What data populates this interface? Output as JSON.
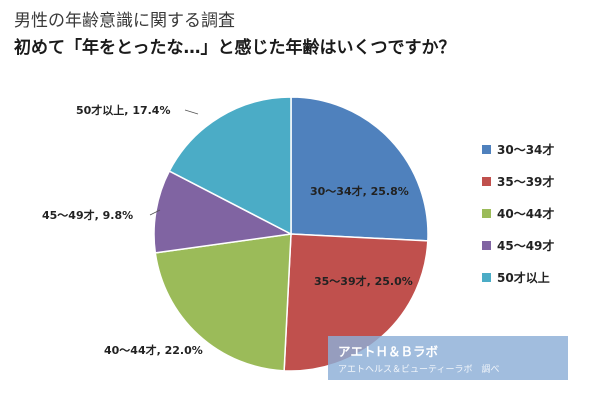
{
  "title_line1": "男性の年齢意識に関する調査",
  "title_line2": "初めて「年をとったな…」と感じた年齢はいくつですか？",
  "chart_data": {
    "type": "pie",
    "title": "",
    "start": "12 o'clock",
    "direction": "clockwise",
    "slices": [
      {
        "label": "30～34才",
        "value": 25.8,
        "data_label": "30～34才, 25.8%",
        "color": "#4f81bd"
      },
      {
        "label": "35～39才",
        "value": 25.0,
        "data_label": "35～39才, 25.0%",
        "color": "#c0504d"
      },
      {
        "label": "40～44才",
        "value": 22.0,
        "data_label": "40～44才, 22.0%",
        "color": "#9bbb59"
      },
      {
        "label": "45～49才",
        "value": 9.8,
        "data_label": "45～49才, 9.8%",
        "color": "#8064a2"
      },
      {
        "label": "50才以上",
        "value": 17.4,
        "data_label": "50才以上, 17.4%",
        "color": "#4bacc6"
      }
    ],
    "legend": {
      "position": "right",
      "items": [
        "30～34才",
        "35～39才",
        "40～44才",
        "45～49才",
        "50才以上"
      ]
    }
  },
  "credit": {
    "title": "アエトＨ＆Ｂラボ",
    "subtitle": "アエトヘルス＆ビューティーラボ　調べ"
  }
}
